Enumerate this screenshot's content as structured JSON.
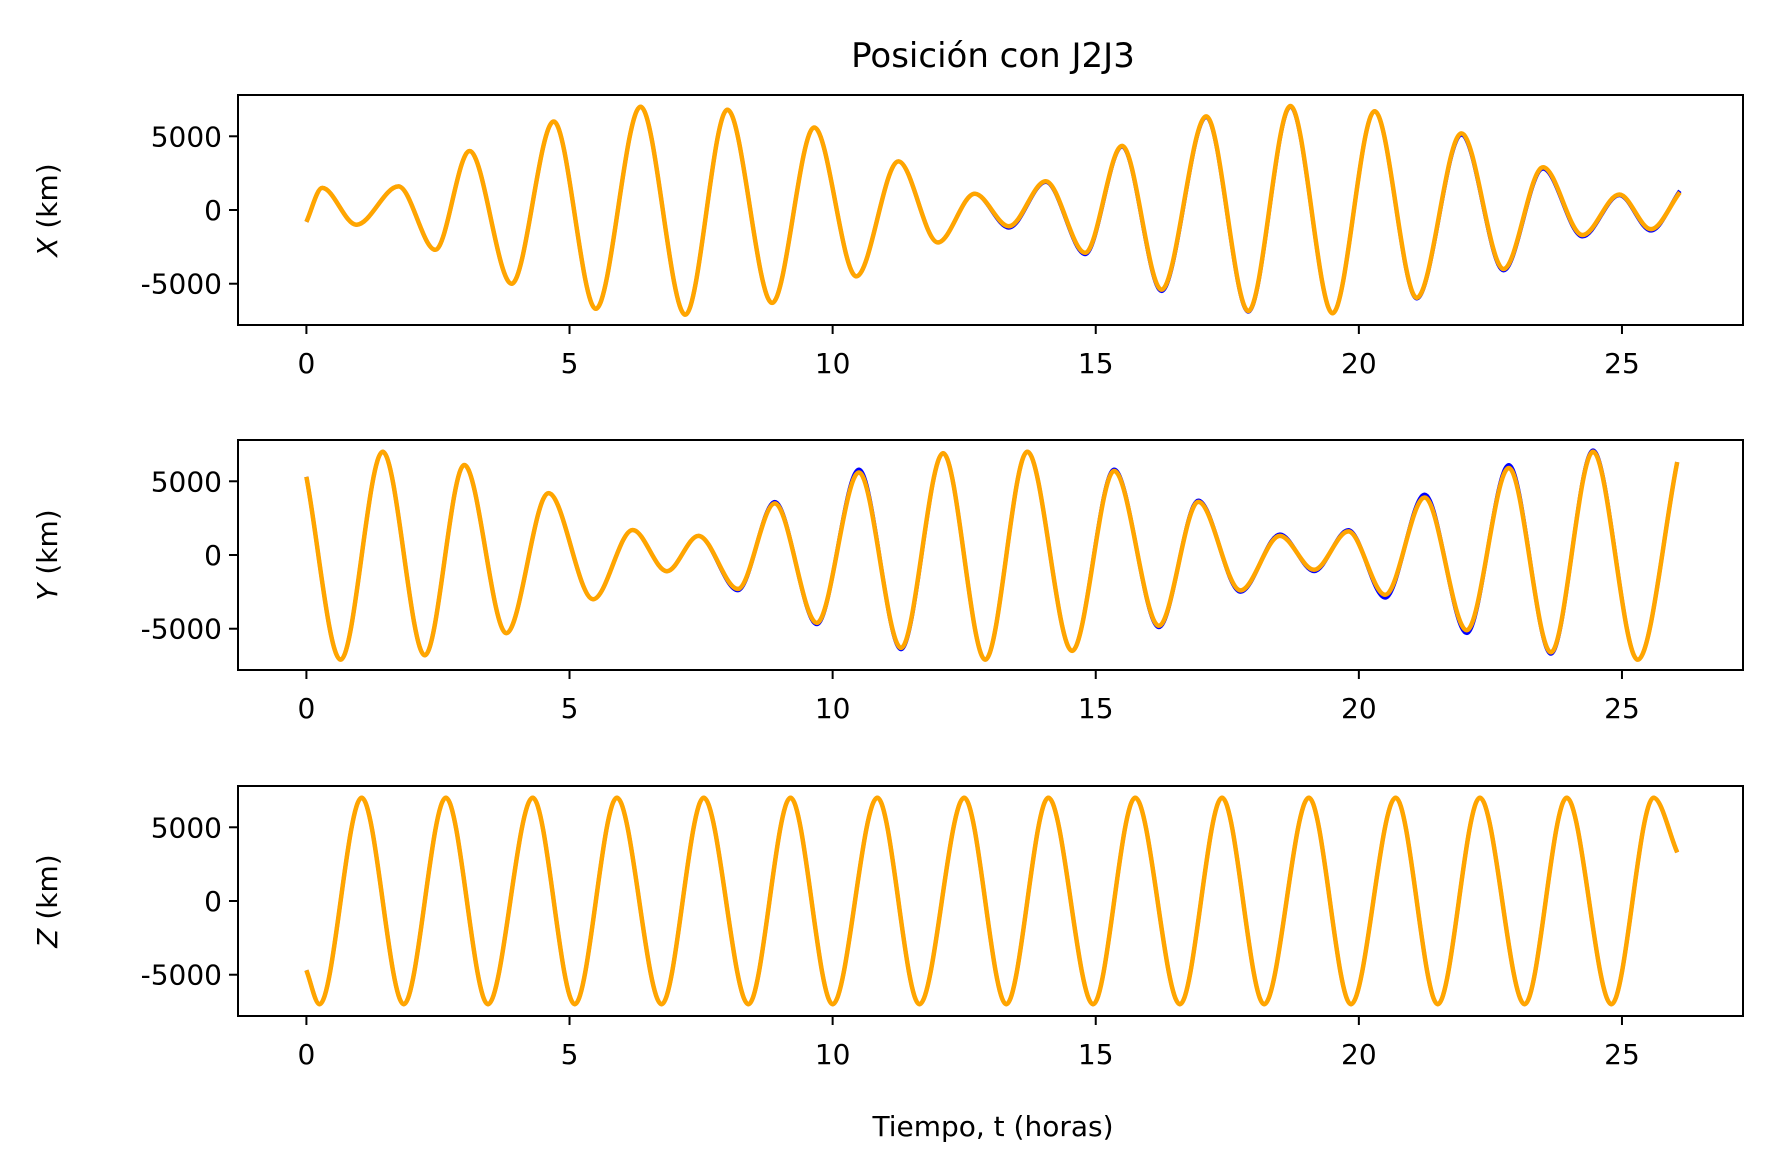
{
  "title": "Posición con J2J3",
  "xlabel": "Tiempo, t (horas)",
  "colors": {
    "reference": "#0000ff",
    "j2j3": "#ffa500"
  },
  "chart_data": [
    {
      "type": "line",
      "ylabel_var": "X",
      "ylabel_unit": " (km)",
      "xlim": [
        -1.3,
        27.3
      ],
      "ylim": [
        -7800,
        7800
      ],
      "xticks": [
        0,
        5,
        10,
        15,
        20,
        25
      ],
      "xtick_labels": [
        "0",
        "5",
        "10",
        "15",
        "20",
        "25"
      ],
      "yticks": [
        -5000,
        0,
        5000
      ],
      "ytick_labels": [
        "-5000",
        "0",
        "5000"
      ],
      "grid": false,
      "x": [
        0,
        0.3,
        0.95,
        1.75,
        2.45,
        3.1,
        3.9,
        4.7,
        5.5,
        6.35,
        7.2,
        8.0,
        8.85,
        9.65,
        10.45,
        11.25,
        12.0,
        12.7,
        13.35,
        14.05,
        14.8,
        15.5,
        16.25,
        17.1,
        17.9,
        18.7,
        19.5,
        20.3,
        21.1,
        21.95,
        22.75,
        23.5,
        24.25,
        24.95,
        25.55,
        26.1
      ],
      "series": [
        {
          "values": [
            -800,
            1500,
            -1000,
            1600,
            -2700,
            4000,
            -5000,
            6000,
            -6700,
            7000,
            -7100,
            6800,
            -6300,
            5600,
            -4500,
            3300,
            -2200,
            1100,
            -1200,
            1900,
            -3000,
            4300,
            -5500,
            6300,
            -6900,
            7000,
            -7000,
            6700,
            -6000,
            5100,
            -4100,
            2800,
            -1800,
            1000,
            -1400,
            1300
          ]
        },
        {
          "values": [
            -800,
            1500,
            -1000,
            1600,
            -2700,
            4000,
            -5000,
            6000,
            -6700,
            7000,
            -7100,
            6800,
            -6300,
            5600,
            -4500,
            3300,
            -2200,
            1100,
            -1100,
            1950,
            -2900,
            4350,
            -5400,
            6350,
            -6850,
            7050,
            -7000,
            6700,
            -5950,
            5200,
            -4000,
            2900,
            -1700,
            1050,
            -1300,
            1200
          ]
        }
      ]
    },
    {
      "type": "line",
      "ylabel_var": "Y",
      "ylabel_unit": " (km)",
      "xlim": [
        -1.3,
        27.3
      ],
      "ylim": [
        -7800,
        7800
      ],
      "xticks": [
        0,
        5,
        10,
        15,
        20,
        25
      ],
      "xtick_labels": [
        "0",
        "5",
        "10",
        "15",
        "20",
        "25"
      ],
      "yticks": [
        -5000,
        0,
        5000
      ],
      "ytick_labels": [
        "-5000",
        "0",
        "5000"
      ],
      "grid": false,
      "x": [
        0,
        0.65,
        1.45,
        2.25,
        3.0,
        3.8,
        4.6,
        5.45,
        6.2,
        6.85,
        7.45,
        8.2,
        8.9,
        9.7,
        10.5,
        11.3,
        12.1,
        12.9,
        13.7,
        14.55,
        15.35,
        16.2,
        16.95,
        17.75,
        18.5,
        19.15,
        19.8,
        20.5,
        21.25,
        22.05,
        22.85,
        23.65,
        24.45,
        25.3,
        26.05
      ],
      "series": [
        {
          "values": [
            5300,
            -7100,
            7000,
            -6800,
            6100,
            -5300,
            4200,
            -3000,
            1700,
            -1100,
            1300,
            -2400,
            3600,
            -4700,
            5800,
            -6400,
            6900,
            -7100,
            7000,
            -6500,
            5800,
            -4900,
            3700,
            -2500,
            1400,
            -1100,
            1700,
            -2900,
            4100,
            -5300,
            6100,
            -6700,
            7100,
            -7100,
            6300
          ]
        },
        {
          "values": [
            5300,
            -7100,
            7000,
            -6800,
            6100,
            -5300,
            4200,
            -3000,
            1700,
            -1100,
            1300,
            -2300,
            3500,
            -4600,
            5600,
            -6300,
            6900,
            -7100,
            7000,
            -6500,
            5700,
            -4800,
            3600,
            -2400,
            1300,
            -1000,
            1600,
            -2700,
            3900,
            -5100,
            5900,
            -6600,
            7000,
            -7100,
            6300
          ]
        }
      ]
    },
    {
      "type": "line",
      "ylabel_var": "Z",
      "ylabel_unit": " (km)",
      "xlim": [
        -1.3,
        27.3
      ],
      "ylim": [
        -7800,
        7800
      ],
      "xticks": [
        0,
        5,
        10,
        15,
        20,
        25
      ],
      "xtick_labels": [
        "0",
        "5",
        "10",
        "15",
        "20",
        "25"
      ],
      "yticks": [
        -5000,
        0,
        5000
      ],
      "ytick_labels": [
        "-5000",
        "0",
        "5000"
      ],
      "grid": false,
      "x": [
        0,
        0.25,
        1.05,
        1.85,
        2.65,
        3.45,
        4.3,
        5.1,
        5.9,
        6.75,
        7.55,
        8.4,
        9.2,
        10.0,
        10.85,
        11.65,
        12.5,
        13.3,
        14.1,
        14.95,
        15.75,
        16.6,
        17.4,
        18.2,
        19.05,
        19.85,
        20.7,
        21.5,
        22.3,
        23.15,
        23.95,
        24.8,
        25.6,
        26.05
      ],
      "series": [
        {
          "values": [
            -4700,
            -7000,
            7000,
            -7000,
            7000,
            -7000,
            7000,
            -7000,
            7000,
            -7000,
            7000,
            -7000,
            7000,
            -7000,
            7000,
            -7000,
            7000,
            -7000,
            7000,
            -7000,
            7000,
            -7000,
            7000,
            -7000,
            7000,
            -7000,
            7000,
            -7000,
            7000,
            -7000,
            7000,
            -7000,
            7000,
            3300
          ]
        },
        {
          "values": [
            -4700,
            -7000,
            7000,
            -7000,
            7000,
            -7000,
            7000,
            -7000,
            7000,
            -7000,
            7000,
            -7000,
            7000,
            -7000,
            7000,
            -7000,
            7000,
            -7000,
            7000,
            -7000,
            7000,
            -7000,
            7000,
            -7000,
            7000,
            -7000,
            7000,
            -7000,
            7000,
            -7000,
            7000,
            -7000,
            7000,
            3300
          ]
        }
      ]
    }
  ]
}
